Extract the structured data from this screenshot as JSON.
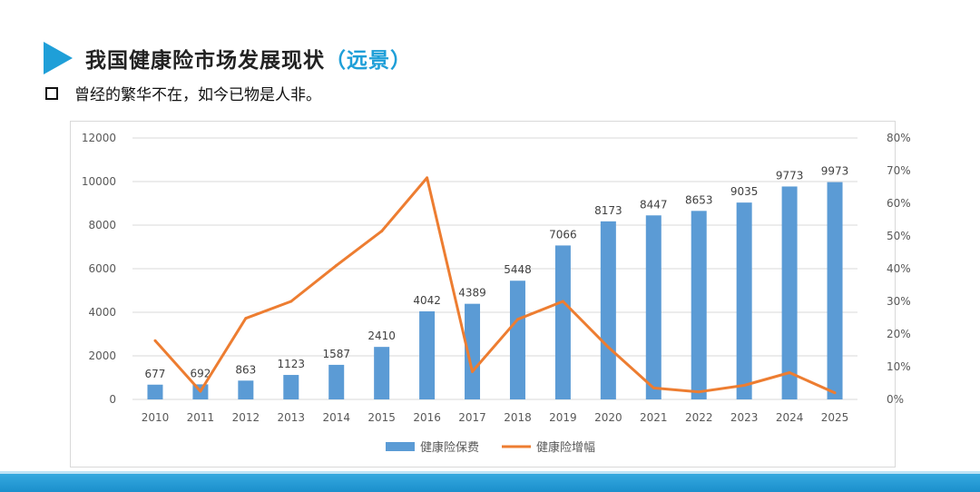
{
  "header": {
    "title_main": "我国健康险市场发展现状",
    "title_accent": "（远景）",
    "subtitle": "曾经的繁华不在，如今已物是人非。"
  },
  "colors": {
    "accent": "#1f9fd8",
    "bar": "#5b9bd5",
    "line": "#ed7d31"
  },
  "chart_data": {
    "type": "bar",
    "categories": [
      "2010",
      "2011",
      "2012",
      "2013",
      "2014",
      "2015",
      "2016",
      "2017",
      "2018",
      "2019",
      "2020",
      "2021",
      "2022",
      "2023",
      "2024",
      "2025"
    ],
    "ylim": [
      0,
      12000
    ],
    "yticks": [
      "0",
      "2000",
      "4000",
      "6000",
      "8000",
      "10000",
      "12000"
    ],
    "y2lim": [
      0,
      80
    ],
    "y2ticks": [
      "0%",
      "10%",
      "20%",
      "30%",
      "40%",
      "50%",
      "60%",
      "70%",
      "80%"
    ],
    "series": [
      {
        "name": "健康险保费",
        "type": "bar",
        "axis": "left",
        "values": [
          677,
          692,
          863,
          1123,
          1587,
          2410,
          4042,
          4389,
          5448,
          7066,
          8173,
          8447,
          8653,
          9035,
          9773,
          9973
        ],
        "labels": [
          "677",
          "692",
          "863",
          "1123",
          "1587",
          "2410",
          "4042",
          "4389",
          "5448",
          "7066",
          "8173",
          "8447",
          "8653",
          "9035",
          "9773",
          "9973"
        ]
      },
      {
        "name": "健康险增幅",
        "type": "line",
        "axis": "right",
        "values": [
          18,
          2.5,
          24.8,
          30,
          41,
          51.5,
          67.8,
          8.5,
          24.5,
          30,
          16,
          3.5,
          2.3,
          4.3,
          8.2,
          2
        ]
      }
    ],
    "grid": true,
    "legend": "bottom"
  }
}
